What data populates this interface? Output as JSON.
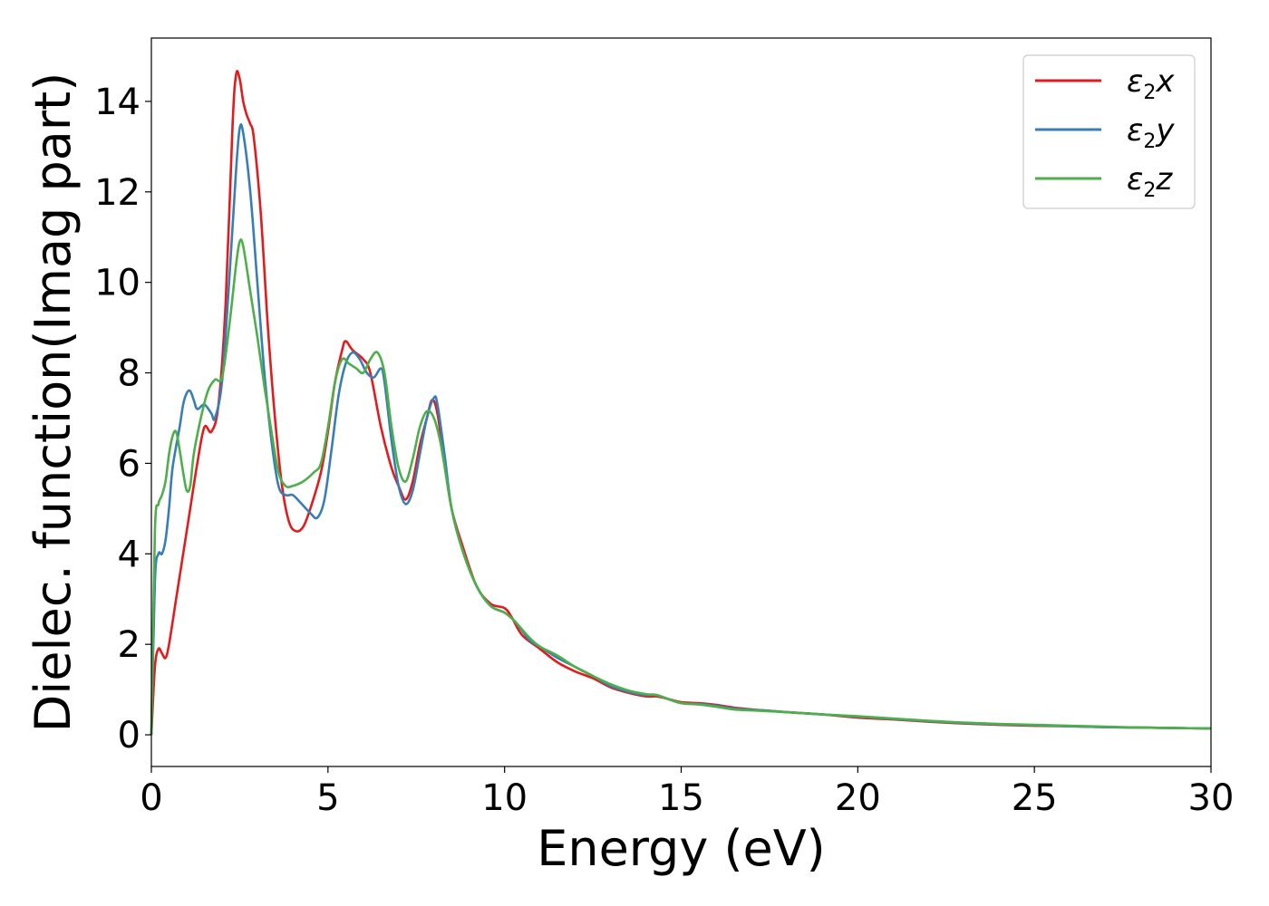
{
  "chart_data": {
    "type": "line",
    "title": "",
    "xlabel": "Energy (eV)",
    "ylabel": "Dielec. function(Imag part)",
    "xlim": [
      0,
      30
    ],
    "ylim": [
      -0.7,
      15.4
    ],
    "xticks": [
      0,
      5,
      10,
      15,
      20,
      25,
      30
    ],
    "xtick_labels": [
      "0",
      "5",
      "10",
      "15",
      "20",
      "25",
      "30"
    ],
    "yticks": [
      0,
      2,
      4,
      6,
      8,
      10,
      12,
      14
    ],
    "ytick_labels": [
      "0",
      "2",
      "4",
      "6",
      "8",
      "10",
      "12",
      "14"
    ],
    "grid": false,
    "legend_position": "top-right",
    "series": [
      {
        "name": "ε2x",
        "legend": {
          "base": "ε",
          "sub": "2",
          "tail": "x"
        },
        "color": "#e41a1c",
        "points": [
          [
            0,
            0
          ],
          [
            0.1,
            1.5
          ],
          [
            0.2,
            1.9
          ],
          [
            0.3,
            1.8
          ],
          [
            0.4,
            1.7
          ],
          [
            0.5,
            2.0
          ],
          [
            0.7,
            3.0
          ],
          [
            0.9,
            4.0
          ],
          [
            1.1,
            5.0
          ],
          [
            1.3,
            6.0
          ],
          [
            1.5,
            6.8
          ],
          [
            1.7,
            6.7
          ],
          [
            1.9,
            7.3
          ],
          [
            2.1,
            9.5
          ],
          [
            2.3,
            13.5
          ],
          [
            2.4,
            14.6
          ],
          [
            2.5,
            14.5
          ],
          [
            2.6,
            14.0
          ],
          [
            2.7,
            13.7
          ],
          [
            2.8,
            13.5
          ],
          [
            2.9,
            13.2
          ],
          [
            3.1,
            11.5
          ],
          [
            3.3,
            9.0
          ],
          [
            3.5,
            7.0
          ],
          [
            3.7,
            5.5
          ],
          [
            3.9,
            4.7
          ],
          [
            4.1,
            4.5
          ],
          [
            4.3,
            4.6
          ],
          [
            4.5,
            5.0
          ],
          [
            4.8,
            5.8
          ],
          [
            5.0,
            6.7
          ],
          [
            5.2,
            7.8
          ],
          [
            5.4,
            8.5
          ],
          [
            5.5,
            8.7
          ],
          [
            5.7,
            8.5
          ],
          [
            6.0,
            8.3
          ],
          [
            6.2,
            8.0
          ],
          [
            6.5,
            6.8
          ],
          [
            6.8,
            5.9
          ],
          [
            7.0,
            5.5
          ],
          [
            7.2,
            5.2
          ],
          [
            7.4,
            5.6
          ],
          [
            7.6,
            6.4
          ],
          [
            7.8,
            7.0
          ],
          [
            7.95,
            7.4
          ],
          [
            8.1,
            7.1
          ],
          [
            8.3,
            6.0
          ],
          [
            8.5,
            5.0
          ],
          [
            8.8,
            4.2
          ],
          [
            9.2,
            3.3
          ],
          [
            9.6,
            2.9
          ],
          [
            10.0,
            2.8
          ],
          [
            10.2,
            2.6
          ],
          [
            10.5,
            2.2
          ],
          [
            11.0,
            1.9
          ],
          [
            11.5,
            1.6
          ],
          [
            12.0,
            1.4
          ],
          [
            12.5,
            1.25
          ],
          [
            13.0,
            1.05
          ],
          [
            13.5,
            0.93
          ],
          [
            14.0,
            0.85
          ],
          [
            14.3,
            0.85
          ],
          [
            14.6,
            0.8
          ],
          [
            15.0,
            0.72
          ],
          [
            15.5,
            0.7
          ],
          [
            16.0,
            0.66
          ],
          [
            16.5,
            0.6
          ],
          [
            17.0,
            0.56
          ],
          [
            17.5,
            0.53
          ],
          [
            18.0,
            0.5
          ],
          [
            19.0,
            0.45
          ],
          [
            20.0,
            0.38
          ],
          [
            21.0,
            0.34
          ],
          [
            22.0,
            0.29
          ],
          [
            23.0,
            0.25
          ],
          [
            24.0,
            0.22
          ],
          [
            25.0,
            0.2
          ],
          [
            26.0,
            0.19
          ],
          [
            27.0,
            0.17
          ],
          [
            28.0,
            0.16
          ],
          [
            29.0,
            0.15
          ],
          [
            30.0,
            0.14
          ]
        ]
      },
      {
        "name": "ε2y",
        "legend": {
          "base": "ε",
          "sub": "2",
          "tail": "y"
        },
        "color": "#377eb8",
        "points": [
          [
            0,
            0
          ],
          [
            0.1,
            3.4
          ],
          [
            0.2,
            4.0
          ],
          [
            0.3,
            4.0
          ],
          [
            0.4,
            4.3
          ],
          [
            0.5,
            5.0
          ],
          [
            0.6,
            5.9
          ],
          [
            0.8,
            6.8
          ],
          [
            0.9,
            7.3
          ],
          [
            1.0,
            7.55
          ],
          [
            1.1,
            7.6
          ],
          [
            1.2,
            7.4
          ],
          [
            1.3,
            7.2
          ],
          [
            1.5,
            7.3
          ],
          [
            1.7,
            7.1
          ],
          [
            1.8,
            7.0
          ],
          [
            2.0,
            7.8
          ],
          [
            2.2,
            10.0
          ],
          [
            2.4,
            12.5
          ],
          [
            2.5,
            13.4
          ],
          [
            2.6,
            13.3
          ],
          [
            2.8,
            12.0
          ],
          [
            3.0,
            10.0
          ],
          [
            3.2,
            8.0
          ],
          [
            3.4,
            6.5
          ],
          [
            3.6,
            5.5
          ],
          [
            3.8,
            5.3
          ],
          [
            4.0,
            5.3
          ],
          [
            4.2,
            5.15
          ],
          [
            4.5,
            4.9
          ],
          [
            4.7,
            4.8
          ],
          [
            4.9,
            5.2
          ],
          [
            5.1,
            6.3
          ],
          [
            5.3,
            7.5
          ],
          [
            5.5,
            8.2
          ],
          [
            5.7,
            8.45
          ],
          [
            5.9,
            8.3
          ],
          [
            6.1,
            8.0
          ],
          [
            6.3,
            7.9
          ],
          [
            6.5,
            8.1
          ],
          [
            6.6,
            7.8
          ],
          [
            6.8,
            6.5
          ],
          [
            7.0,
            5.5
          ],
          [
            7.2,
            5.1
          ],
          [
            7.4,
            5.4
          ],
          [
            7.6,
            6.2
          ],
          [
            7.8,
            7.0
          ],
          [
            8.0,
            7.45
          ],
          [
            8.1,
            7.3
          ],
          [
            8.3,
            6.2
          ],
          [
            8.5,
            5.0
          ],
          [
            8.8,
            4.1
          ],
          [
            9.2,
            3.3
          ],
          [
            9.6,
            2.85
          ],
          [
            10.0,
            2.7
          ],
          [
            10.3,
            2.5
          ],
          [
            10.7,
            2.1
          ],
          [
            11.0,
            1.95
          ],
          [
            11.5,
            1.7
          ],
          [
            12.0,
            1.5
          ],
          [
            12.5,
            1.3
          ],
          [
            13.0,
            1.08
          ],
          [
            13.5,
            0.95
          ],
          [
            14.0,
            0.88
          ],
          [
            14.3,
            0.88
          ],
          [
            14.6,
            0.8
          ],
          [
            15.0,
            0.7
          ],
          [
            15.5,
            0.68
          ],
          [
            16.0,
            0.64
          ],
          [
            16.5,
            0.58
          ],
          [
            17.0,
            0.55
          ],
          [
            17.5,
            0.53
          ],
          [
            18.0,
            0.5
          ],
          [
            19.0,
            0.45
          ],
          [
            20.0,
            0.4
          ],
          [
            21.0,
            0.35
          ],
          [
            22.0,
            0.3
          ],
          [
            23.0,
            0.26
          ],
          [
            24.0,
            0.23
          ],
          [
            25.0,
            0.21
          ],
          [
            26.0,
            0.19
          ],
          [
            27.0,
            0.17
          ],
          [
            28.0,
            0.16
          ],
          [
            29.0,
            0.15
          ],
          [
            30.0,
            0.14
          ]
        ]
      },
      {
        "name": "ε2z",
        "legend": {
          "base": "ε",
          "sub": "2",
          "tail": "z"
        },
        "color": "#4daf4a",
        "points": [
          [
            0,
            0
          ],
          [
            0.1,
            4.5
          ],
          [
            0.2,
            5.1
          ],
          [
            0.3,
            5.3
          ],
          [
            0.4,
            5.6
          ],
          [
            0.5,
            6.2
          ],
          [
            0.6,
            6.6
          ],
          [
            0.7,
            6.7
          ],
          [
            0.8,
            6.3
          ],
          [
            0.9,
            5.8
          ],
          [
            1.0,
            5.4
          ],
          [
            1.1,
            5.5
          ],
          [
            1.2,
            6.2
          ],
          [
            1.4,
            7.0
          ],
          [
            1.6,
            7.6
          ],
          [
            1.8,
            7.85
          ],
          [
            2.0,
            7.9
          ],
          [
            2.2,
            9.0
          ],
          [
            2.4,
            10.4
          ],
          [
            2.5,
            10.9
          ],
          [
            2.6,
            10.8
          ],
          [
            2.8,
            9.8
          ],
          [
            3.0,
            8.8
          ],
          [
            3.2,
            7.7
          ],
          [
            3.4,
            6.7
          ],
          [
            3.6,
            5.8
          ],
          [
            3.8,
            5.5
          ],
          [
            4.0,
            5.5
          ],
          [
            4.3,
            5.6
          ],
          [
            4.6,
            5.8
          ],
          [
            4.8,
            6.0
          ],
          [
            5.0,
            6.8
          ],
          [
            5.2,
            7.8
          ],
          [
            5.4,
            8.3
          ],
          [
            5.6,
            8.2
          ],
          [
            5.8,
            8.1
          ],
          [
            6.0,
            8.0
          ],
          [
            6.2,
            8.3
          ],
          [
            6.4,
            8.45
          ],
          [
            6.6,
            8.0
          ],
          [
            6.8,
            6.8
          ],
          [
            7.0,
            5.9
          ],
          [
            7.2,
            5.6
          ],
          [
            7.4,
            6.1
          ],
          [
            7.6,
            6.8
          ],
          [
            7.8,
            7.15
          ],
          [
            8.0,
            7.0
          ],
          [
            8.2,
            6.4
          ],
          [
            8.5,
            5.0
          ],
          [
            8.8,
            4.1
          ],
          [
            9.2,
            3.3
          ],
          [
            9.6,
            2.85
          ],
          [
            10.0,
            2.7
          ],
          [
            10.3,
            2.5
          ],
          [
            10.7,
            2.15
          ],
          [
            11.0,
            1.95
          ],
          [
            11.5,
            1.75
          ],
          [
            12.0,
            1.5
          ],
          [
            12.5,
            1.3
          ],
          [
            13.0,
            1.12
          ],
          [
            13.5,
            0.98
          ],
          [
            14.0,
            0.9
          ],
          [
            14.3,
            0.88
          ],
          [
            14.6,
            0.8
          ],
          [
            15.0,
            0.7
          ],
          [
            15.5,
            0.67
          ],
          [
            16.0,
            0.62
          ],
          [
            16.5,
            0.56
          ],
          [
            17.0,
            0.54
          ],
          [
            17.5,
            0.52
          ],
          [
            18.0,
            0.5
          ],
          [
            19.0,
            0.45
          ],
          [
            20.0,
            0.41
          ],
          [
            21.0,
            0.36
          ],
          [
            22.0,
            0.31
          ],
          [
            23.0,
            0.27
          ],
          [
            24.0,
            0.24
          ],
          [
            25.0,
            0.22
          ],
          [
            26.0,
            0.2
          ],
          [
            27.0,
            0.18
          ],
          [
            28.0,
            0.16
          ],
          [
            29.0,
            0.15
          ],
          [
            30.0,
            0.14
          ]
        ]
      }
    ]
  }
}
